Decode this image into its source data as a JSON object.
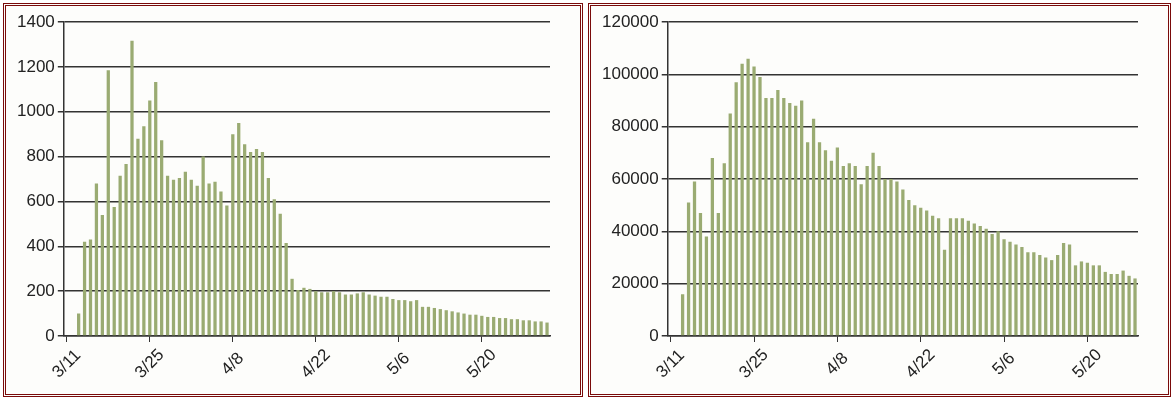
{
  "chart_data": [
    {
      "type": "bar",
      "color": "#9aab72",
      "grid": "y",
      "categories": [
        "3/11",
        null,
        null,
        null,
        null,
        null,
        null,
        null,
        null,
        null,
        null,
        null,
        null,
        null,
        "3/25",
        null,
        null,
        null,
        null,
        null,
        null,
        null,
        null,
        null,
        null,
        null,
        null,
        null,
        "4/8",
        null,
        null,
        null,
        null,
        null,
        null,
        null,
        null,
        null,
        null,
        null,
        null,
        null,
        "4/22",
        null,
        null,
        null,
        null,
        null,
        null,
        null,
        null,
        null,
        null,
        null,
        null,
        null,
        "5/6",
        null,
        null,
        null,
        null,
        null,
        null,
        null,
        null,
        null,
        null,
        null,
        null,
        null,
        "5/20",
        null,
        null,
        null,
        null,
        null,
        null,
        null,
        null,
        null,
        null,
        null
      ],
      "values": [
        null,
        null,
        100,
        420,
        430,
        680,
        540,
        1185,
        575,
        715,
        767,
        1316,
        880,
        935,
        1050,
        1133,
        873,
        715,
        697,
        705,
        732,
        697,
        670,
        800,
        680,
        688,
        644,
        582,
        900,
        950,
        855,
        820,
        834,
        820,
        705,
        610,
        545,
        415,
        255,
        205,
        215,
        210,
        200,
        195,
        195,
        200,
        195,
        185,
        185,
        190,
        195,
        185,
        180,
        175,
        175,
        165,
        160,
        160,
        155,
        160,
        130,
        130,
        125,
        120,
        115,
        110,
        105,
        100,
        95,
        95,
        90,
        85,
        85,
        80,
        80,
        75,
        75,
        70,
        70,
        65,
        65,
        60
      ],
      "ylim": [
        0,
        1400
      ],
      "yticks": [
        0,
        200,
        400,
        600,
        800,
        1000,
        1200,
        1400
      ]
    },
    {
      "type": "bar",
      "color": "#9aab72",
      "grid": "y",
      "categories": [
        "3/11",
        null,
        null,
        null,
        null,
        null,
        null,
        null,
        null,
        null,
        null,
        null,
        null,
        null,
        "3/25",
        null,
        null,
        null,
        null,
        null,
        null,
        null,
        null,
        null,
        null,
        null,
        null,
        null,
        "4/8",
        null,
        null,
        null,
        null,
        null,
        null,
        null,
        null,
        null,
        null,
        null,
        null,
        null,
        "4/22",
        null,
        null,
        null,
        null,
        null,
        null,
        null,
        null,
        null,
        null,
        null,
        null,
        null,
        "5/6",
        null,
        null,
        null,
        null,
        null,
        null,
        null,
        null,
        null,
        null,
        null,
        null,
        null,
        "5/20",
        null,
        null,
        null,
        null,
        null,
        null,
        null,
        null
      ],
      "values": [
        null,
        null,
        16000,
        51000,
        59000,
        47000,
        38000,
        68000,
        47000,
        66000,
        85000,
        97000,
        104000,
        106000,
        103000,
        99000,
        91000,
        91000,
        94000,
        91000,
        89000,
        88000,
        90000,
        74000,
        83000,
        74000,
        71000,
        67000,
        72000,
        65000,
        66000,
        65000,
        58000,
        65000,
        70000,
        65000,
        60000,
        60000,
        59000,
        56000,
        52000,
        50000,
        49000,
        48000,
        46000,
        45000,
        33000,
        45000,
        45000,
        45000,
        44000,
        43000,
        42000,
        41000,
        39000,
        40000,
        37000,
        36000,
        35000,
        34000,
        32000,
        32000,
        31000,
        30000,
        29000,
        31000,
        35500,
        35000,
        27000,
        28500,
        28000,
        27000,
        27000,
        24500,
        23700,
        23700,
        25000,
        23000,
        22000
      ],
      "ylim": [
        0,
        120000
      ],
      "yticks": [
        0,
        20000,
        40000,
        60000,
        80000,
        100000,
        120000
      ]
    }
  ]
}
